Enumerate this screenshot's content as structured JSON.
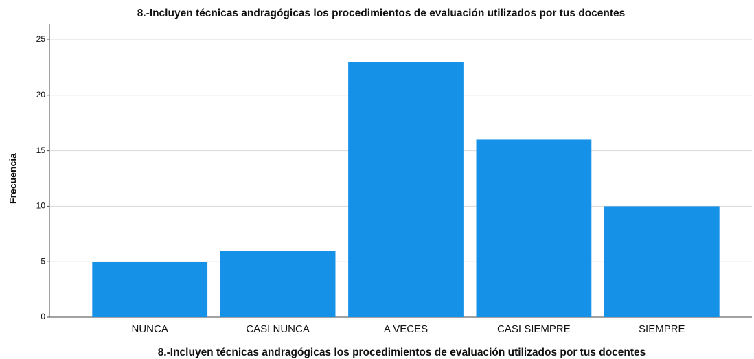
{
  "chart_data": {
    "type": "bar",
    "title": "8.-Incluyen técnicas andragógicas los procedimientos de evaluación utilizados por tus docentes",
    "xlabel": "8.-Incluyen técnicas andragógicas los procedimientos de evaluación utilizados por tus docentes",
    "ylabel": "Frecuencia",
    "categories": [
      "NUNCA",
      "CASI NUNCA",
      "A VECES",
      "CASI SIEMPRE",
      "SIEMPRE"
    ],
    "values": [
      5,
      6,
      23,
      16,
      10
    ],
    "color": "#1591e8",
    "ylim": [
      0,
      25
    ],
    "yticks": [
      0,
      5,
      10,
      15,
      20,
      25
    ],
    "grid": true
  }
}
